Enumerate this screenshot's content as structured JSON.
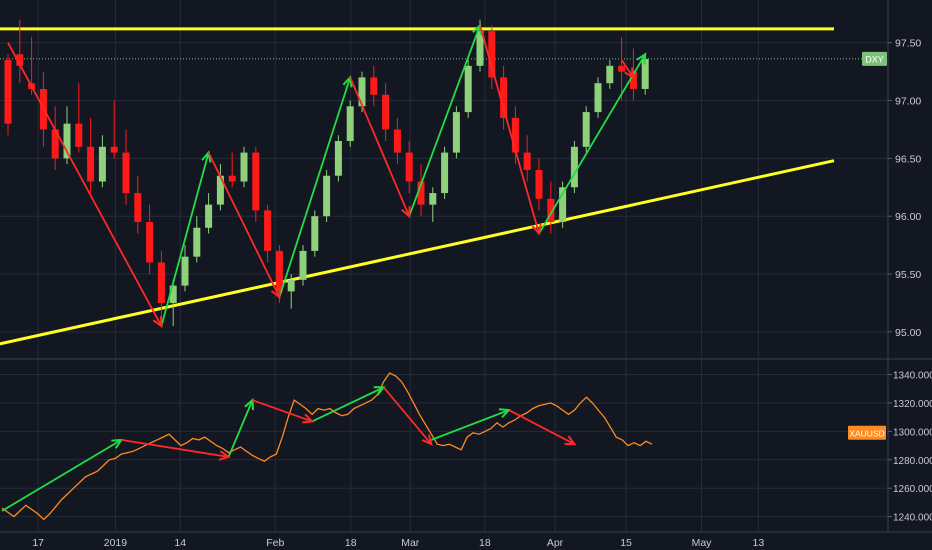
{
  "colors": {
    "background": "#131722",
    "grid": "#262b3a",
    "axis_text": "#c8cbd3",
    "up": "#8ed17a",
    "down": "#ff1a1a",
    "trendline": "#ffff22",
    "xauusd_line": "#ff8a1f",
    "arrow_up": "#22dd44",
    "arrow_down": "#ff2828",
    "dxy_tag": "#7ec27a",
    "xau_tag": "#ff8a1f"
  },
  "chart_data": [
    {
      "type": "candlestick",
      "symbol_label": "DXY",
      "ylim": [
        94.8,
        97.8
      ],
      "y_ticks": [
        "95.00",
        "95.50",
        "96.00",
        "96.50",
        "97.00",
        "97.50"
      ],
      "last_value": 97.36,
      "candles": [
        [
          97.35,
          97.4,
          96.8,
          96.7
        ],
        [
          97.4,
          97.7,
          97.3,
          97.15
        ],
        [
          97.15,
          97.55,
          97.1,
          97.05
        ],
        [
          97.1,
          97.25,
          96.75,
          96.6
        ],
        [
          96.75,
          96.95,
          96.5,
          96.4
        ],
        [
          96.5,
          96.95,
          96.8,
          96.45
        ],
        [
          96.8,
          97.15,
          96.6,
          96.55
        ],
        [
          96.6,
          96.85,
          96.3,
          96.2
        ],
        [
          96.3,
          96.7,
          96.6,
          96.25
        ],
        [
          96.6,
          97.0,
          96.55,
          96.5
        ],
        [
          96.55,
          96.75,
          96.2,
          96.1
        ],
        [
          96.2,
          96.35,
          95.95,
          95.85
        ],
        [
          95.95,
          96.1,
          95.6,
          95.5
        ],
        [
          95.6,
          95.7,
          95.25,
          95.1
        ],
        [
          95.25,
          95.45,
          95.4,
          95.05
        ],
        [
          95.4,
          95.75,
          95.65,
          95.35
        ],
        [
          95.65,
          96.0,
          95.9,
          95.6
        ],
        [
          95.9,
          96.2,
          96.1,
          95.85
        ],
        [
          96.1,
          96.45,
          96.35,
          96.05
        ],
        [
          96.35,
          96.55,
          96.3,
          96.25
        ],
        [
          96.3,
          96.6,
          96.55,
          96.25
        ],
        [
          96.55,
          96.6,
          96.05,
          95.95
        ],
        [
          96.05,
          96.1,
          95.7,
          95.6
        ],
        [
          95.7,
          95.75,
          95.35,
          95.25
        ],
        [
          95.35,
          95.5,
          95.45,
          95.2
        ],
        [
          95.45,
          95.75,
          95.7,
          95.4
        ],
        [
          95.7,
          96.05,
          96.0,
          95.65
        ],
        [
          96.0,
          96.4,
          96.35,
          95.95
        ],
        [
          96.35,
          96.7,
          96.65,
          96.3
        ],
        [
          96.65,
          97.0,
          96.95,
          96.6
        ],
        [
          96.95,
          97.25,
          97.2,
          96.9
        ],
        [
          97.2,
          97.3,
          97.05,
          96.95
        ],
        [
          97.05,
          97.15,
          96.75,
          96.65
        ],
        [
          96.75,
          96.85,
          96.55,
          96.45
        ],
        [
          96.55,
          96.65,
          96.3,
          96.2
        ],
        [
          96.3,
          96.45,
          96.1,
          96.0
        ],
        [
          96.1,
          96.25,
          96.2,
          95.95
        ],
        [
          96.2,
          96.6,
          96.55,
          96.15
        ],
        [
          96.55,
          96.95,
          96.9,
          96.5
        ],
        [
          96.9,
          97.35,
          97.3,
          96.85
        ],
        [
          97.3,
          97.7,
          97.6,
          97.25
        ],
        [
          97.6,
          97.65,
          97.2,
          97.1
        ],
        [
          97.2,
          97.3,
          96.85,
          96.75
        ],
        [
          96.85,
          96.95,
          96.55,
          96.45
        ],
        [
          96.55,
          96.7,
          96.4,
          96.3
        ],
        [
          96.4,
          96.5,
          96.15,
          96.05
        ],
        [
          96.15,
          96.3,
          95.95,
          95.85
        ],
        [
          95.95,
          96.3,
          96.25,
          95.9
        ],
        [
          96.25,
          96.65,
          96.6,
          96.2
        ],
        [
          96.6,
          96.95,
          96.9,
          96.55
        ],
        [
          96.9,
          97.2,
          97.15,
          96.85
        ],
        [
          97.15,
          97.35,
          97.3,
          97.1
        ],
        [
          97.3,
          97.55,
          97.25,
          97.0
        ],
        [
          97.25,
          97.45,
          97.1,
          97.0
        ],
        [
          97.1,
          97.4,
          97.36,
          97.05
        ]
      ],
      "annotations_up": [
        [
          13,
          95.05,
          17,
          96.55
        ],
        [
          23,
          95.3,
          29,
          97.2
        ],
        [
          34,
          96.0,
          40,
          97.65
        ],
        [
          45,
          95.85,
          54,
          97.4
        ]
      ],
      "annotations_down": [
        [
          0,
          97.5,
          13,
          95.05
        ],
        [
          17,
          96.55,
          23,
          95.3
        ],
        [
          29,
          97.2,
          34,
          96.0
        ],
        [
          40,
          97.65,
          45,
          95.85
        ],
        [
          52,
          97.35,
          53,
          97.2
        ]
      ],
      "trendlines": [
        [
          -5,
          94.8,
          70,
          96.48
        ],
        [
          -5,
          97.62,
          70,
          97.62
        ]
      ]
    },
    {
      "type": "line",
      "symbol_label": "XAUUSD",
      "ylim": [
        1232,
        1346
      ],
      "y_ticks": [
        "1240.000",
        "1260.000",
        "1280.000",
        "1300.000",
        "1320.000",
        "1340.000"
      ],
      "last_value": 1291,
      "values": [
        1246,
        1243,
        1240,
        1244,
        1248,
        1245,
        1242,
        1238,
        1242,
        1247,
        1252,
        1256,
        1260,
        1264,
        1268,
        1270,
        1272,
        1276,
        1280,
        1281,
        1284,
        1285,
        1286,
        1288,
        1290,
        1292,
        1294,
        1296,
        1298,
        1294,
        1290,
        1292,
        1295,
        1294,
        1296,
        1293,
        1290,
        1288,
        1285,
        1287,
        1289,
        1286,
        1283,
        1281,
        1279,
        1282,
        1284,
        1296,
        1310,
        1322,
        1319,
        1316,
        1312,
        1316,
        1315,
        1316,
        1313,
        1311,
        1312,
        1316,
        1318,
        1320,
        1322,
        1326,
        1335,
        1341,
        1339,
        1335,
        1328,
        1320,
        1312,
        1305,
        1298,
        1291,
        1290,
        1291,
        1289,
        1287,
        1296,
        1299,
        1298,
        1300,
        1302,
        1306,
        1303,
        1306,
        1308,
        1311,
        1313,
        1316,
        1318,
        1319,
        1320,
        1318,
        1315,
        1312,
        1315,
        1320,
        1324,
        1320,
        1315,
        1310,
        1303,
        1296,
        1294,
        1290,
        1292,
        1290,
        1293,
        1291
      ],
      "annotations_up": [
        [
          0,
          1244,
          20,
          1294
        ],
        [
          38,
          1282,
          42,
          1322
        ],
        [
          52,
          1307,
          64,
          1331
        ],
        [
          72,
          1294,
          85,
          1315
        ]
      ],
      "annotations_down": [
        [
          20,
          1294,
          38,
          1282
        ],
        [
          42,
          1322,
          52,
          1307
        ],
        [
          64,
          1331,
          72,
          1291
        ],
        [
          85,
          1315,
          96,
          1291
        ]
      ]
    }
  ],
  "x_axis": {
    "labels": [
      {
        "text": "17",
        "frac": 0.043
      },
      {
        "text": "2019",
        "frac": 0.13
      },
      {
        "text": "14",
        "frac": 0.203
      },
      {
        "text": "Feb",
        "frac": 0.31
      },
      {
        "text": "18",
        "frac": 0.395
      },
      {
        "text": "Mar",
        "frac": 0.462
      },
      {
        "text": "18",
        "frac": 0.546
      },
      {
        "text": "Apr",
        "frac": 0.625
      },
      {
        "text": "15",
        "frac": 0.705
      },
      {
        "text": "May",
        "frac": 0.79
      },
      {
        "text": "13",
        "frac": 0.854
      }
    ]
  }
}
